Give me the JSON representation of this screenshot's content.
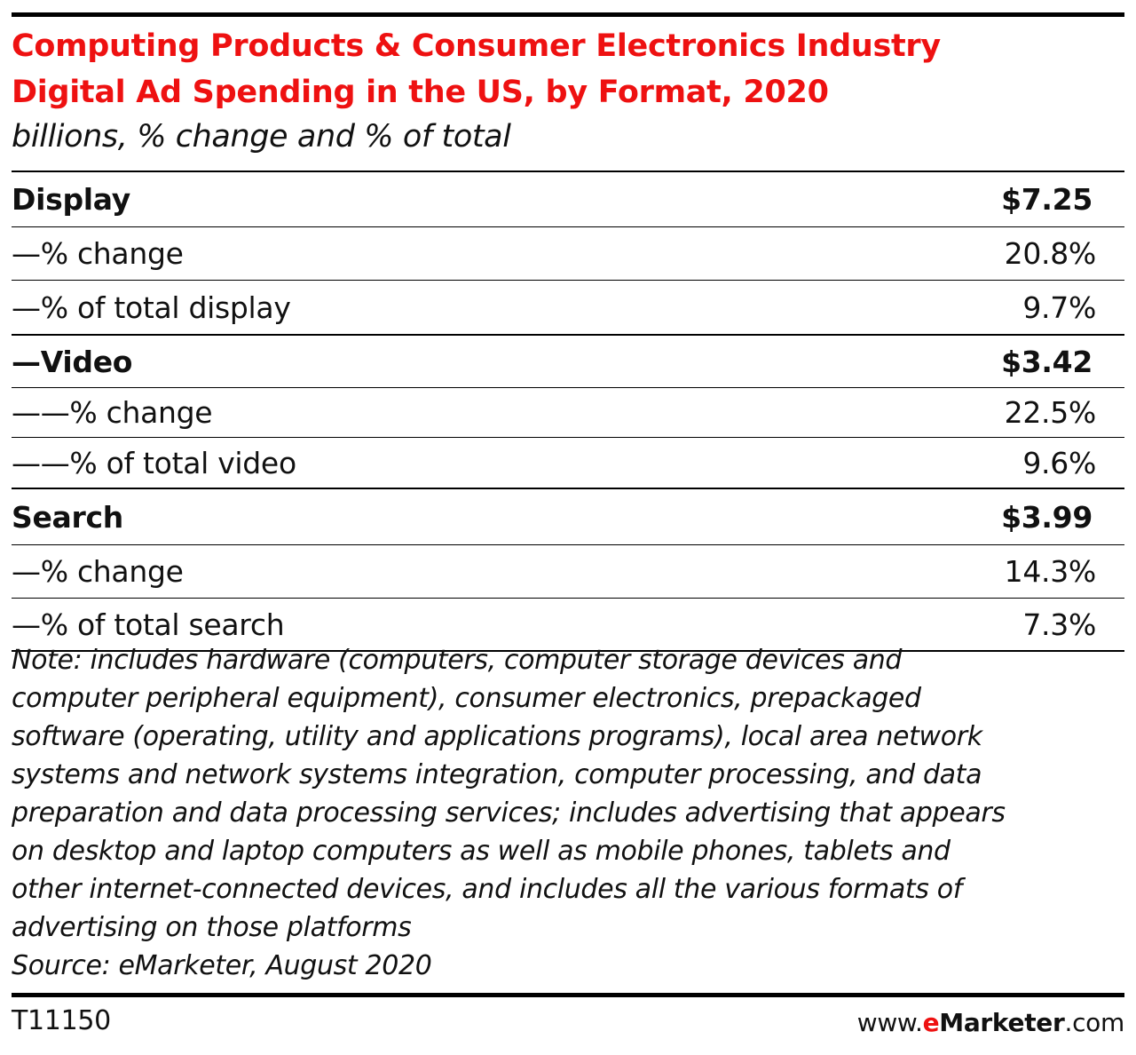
{
  "title_line1": "Computing Products & Consumer Electronics Industry",
  "title_line2": "Digital Ad Spending in the US, by Format, 2020",
  "subtitle": "billions, % change and % of total",
  "chart_data": {
    "type": "table",
    "title": "Computing Products & Consumer Electronics Industry Digital Ad Spending in the US, by Format, 2020",
    "subtitle": "billions, % change and % of total",
    "rows": [
      {
        "label": "Display",
        "value": "$7.25",
        "style": "head"
      },
      {
        "label": "—% change",
        "value": "20.8%",
        "style": "sub"
      },
      {
        "label": "—% of total display",
        "value": "9.7%",
        "style": "sub-end"
      },
      {
        "label": "—Video",
        "value": "$3.42",
        "style": "head"
      },
      {
        "label": "——% change",
        "value": "22.5%",
        "style": "sub"
      },
      {
        "label": "——% of total video",
        "value": "9.6%",
        "style": "sub-end"
      },
      {
        "label": "Search",
        "value": "$3.99",
        "style": "head"
      },
      {
        "label": "—% change",
        "value": "14.3%",
        "style": "sub"
      },
      {
        "label": "—% of total search",
        "value": "7.3%",
        "style": "last"
      }
    ]
  },
  "note_lines": [
    "Note: includes hardware (computers, computer storage devices and",
    "computer peripheral equipment), consumer electronics, prepackaged",
    "software (operating, utility and applications programs), local area network",
    "systems and network systems integration, computer processing, and data",
    "preparation and data processing services; includes advertising that appears",
    "on desktop and laptop computers as well as mobile phones, tablets and",
    "other internet-connected devices, and includes all the various formats of",
    "advertising on those platforms",
    "Source: eMarketer, August 2020"
  ],
  "footer": {
    "id": "T11150",
    "brand_prefix": "www.",
    "brand_e": "e",
    "brand_name": "Marketer",
    "brand_suffix": ".com"
  },
  "colors": {
    "title": "#ee1111",
    "text": "#111111",
    "rules": "#000000"
  }
}
